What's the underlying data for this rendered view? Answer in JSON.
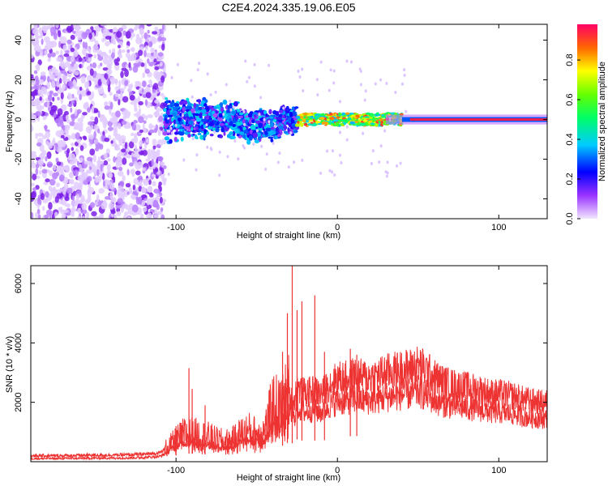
{
  "title": "C2E4.2024.335.19.06.E05",
  "chart_data": [
    {
      "type": "heatmap",
      "xlabel": "Height of straight line (km)",
      "ylabel": "Frequency (Hz)",
      "xlim": [
        -190,
        130
      ],
      "ylim": [
        -50,
        48
      ],
      "xticks": [
        -100,
        0,
        100
      ],
      "yticks": [
        -40,
        -20,
        0,
        20,
        40
      ],
      "colorbar": {
        "label": "Normalized spectral amplitude",
        "range": [
          0,
          0.98
        ],
        "ticks": [
          0.0,
          0.2,
          0.4,
          0.6,
          0.8
        ]
      },
      "regions": [
        {
          "x": [
            -190,
            -107
          ],
          "freq_spread": [
            -50,
            48
          ],
          "amplitude": "low-noise"
        },
        {
          "x": [
            -107,
            -25
          ],
          "freq_spread": [
            -10,
            12
          ],
          "amplitude": [
            0.1,
            0.4
          ]
        },
        {
          "x": [
            -25,
            40
          ],
          "freq_spread": [
            -3,
            3
          ],
          "amplitude": [
            0.4,
            0.95
          ]
        },
        {
          "x": [
            40,
            130
          ],
          "freq_spread": [
            -1,
            1
          ],
          "amplitude": [
            0.9,
            0.98
          ]
        }
      ]
    },
    {
      "type": "line",
      "xlabel": "Height of straight line (km)",
      "ylabel": "SNR (10 * v/v)",
      "xlim": [
        -190,
        130
      ],
      "ylim": [
        0,
        6600
      ],
      "xticks": [
        -100,
        0,
        100
      ],
      "yticks": [
        2000,
        4000,
        6000
      ],
      "series": [
        {
          "color": "#ee3333",
          "x": [
            -190,
            -170,
            -150,
            -130,
            -120,
            -110,
            -105,
            -100,
            -95,
            -90,
            -85,
            -80,
            -75,
            -70,
            -65,
            -60,
            -55,
            -50,
            -45,
            -40,
            -35,
            -30,
            -27,
            -25,
            -20,
            -15,
            -10,
            -5,
            0,
            5,
            10,
            15,
            20,
            25,
            30,
            35,
            40,
            45,
            50,
            55,
            60,
            65,
            70,
            75,
            80,
            85,
            90,
            95,
            100,
            105,
            110,
            115,
            120,
            125,
            130
          ],
          "y": [
            200,
            200,
            220,
            230,
            250,
            300,
            500,
            700,
            900,
            900,
            850,
            800,
            700,
            650,
            700,
            900,
            1000,
            900,
            1000,
            1800,
            1700,
            2200,
            2000,
            2500,
            2300,
            2400,
            2300,
            2600,
            2800,
            2800,
            2900,
            2850,
            2850,
            2900,
            3000,
            3050,
            3100,
            3150,
            3250,
            3100,
            2850,
            2700,
            2600,
            2550,
            2500,
            2450,
            2400,
            2300,
            2300,
            2250,
            2200,
            2100,
            2050,
            2000,
            2000
          ],
          "spikes": [
            {
              "x": -100,
              "y": 1200
            },
            {
              "x": -92,
              "y": 3150
            },
            {
              "x": -90,
              "y": 2450
            },
            {
              "x": -82,
              "y": 1900
            },
            {
              "x": -34,
              "y": 3700
            },
            {
              "x": -31,
              "y": 5000
            },
            {
              "x": -28,
              "y": 6600
            },
            {
              "x": -25,
              "y": 5100
            },
            {
              "x": -22,
              "y": 5400
            },
            {
              "x": -14,
              "y": 5600
            },
            {
              "x": -8,
              "y": 3700
            },
            {
              "x": 8,
              "y": 3800
            },
            {
              "x": 12,
              "y": 3600
            }
          ]
        }
      ]
    }
  ]
}
